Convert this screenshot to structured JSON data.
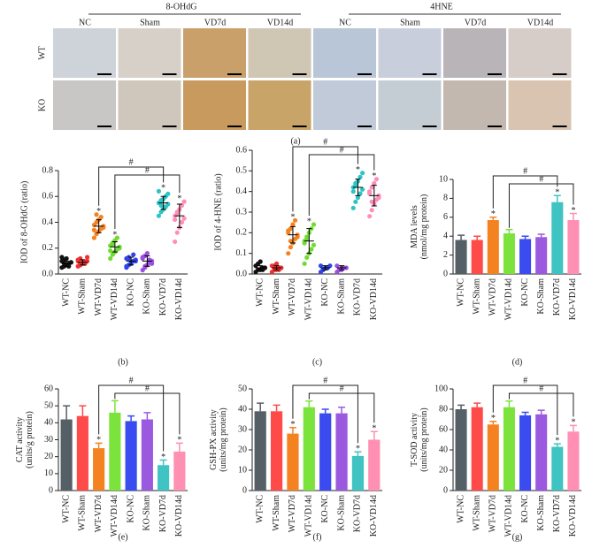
{
  "panel_a": {
    "caption": "(a)",
    "rows": [
      "WT",
      "KO"
    ],
    "stains": [
      {
        "name": "8-OHdG",
        "columns": [
          "NC",
          "Sham",
          "VD7d",
          "VD14d"
        ]
      },
      {
        "name": "4HNE",
        "columns": [
          "NC",
          "Sham",
          "VD7d",
          "VD14d"
        ]
      }
    ]
  },
  "chart_data": [
    {
      "type": "dot",
      "caption": "(b)",
      "ylabel": [
        "IOD of 8-OHdG (ratio)"
      ],
      "categories": [
        "WT-NC",
        "WT-Sham",
        "WT-VD7d",
        "WT-VD14d",
        "KO-NC",
        "KO-Sham",
        "KO-VD7d",
        "KO-VD14d"
      ],
      "colors": [
        "#111111",
        "#f03030",
        "#f58220",
        "#6fdc2f",
        "#2f45e8",
        "#9a4fe0",
        "#2ec4c4",
        "#ff8fb8"
      ],
      "ylim": [
        0,
        0.8
      ],
      "yticks": [
        {
          "value": 0,
          "label": "0.0"
        },
        0.2,
        0.4,
        0.6,
        0.8
      ],
      "groups": [
        {
          "points": [
            0.05,
            0.06,
            0.07,
            0.08,
            0.09,
            0.1,
            0.11,
            0.12,
            0.06,
            0.09,
            0.13,
            0.08
          ],
          "mean": 0.08,
          "sd": 0.02
        },
        {
          "points": [
            0.06,
            0.07,
            0.08,
            0.09,
            0.1,
            0.11,
            0.12,
            0.09,
            0.08,
            0.13,
            0.1,
            0.07
          ],
          "mean": 0.09,
          "sd": 0.02
        },
        {
          "points": [
            0.28,
            0.31,
            0.33,
            0.35,
            0.36,
            0.38,
            0.4,
            0.42,
            0.44,
            0.37,
            0.34,
            0.46
          ],
          "mean": 0.37,
          "sd": 0.05
        },
        {
          "points": [
            0.12,
            0.15,
            0.17,
            0.19,
            0.2,
            0.22,
            0.24,
            0.26,
            0.28,
            0.21,
            0.18,
            0.23
          ],
          "mean": 0.21,
          "sd": 0.04
        },
        {
          "points": [
            0.05,
            0.07,
            0.08,
            0.1,
            0.11,
            0.12,
            0.13,
            0.09,
            0.15,
            0.1,
            0.06,
            0.12
          ],
          "mean": 0.1,
          "sd": 0.03
        },
        {
          "points": [
            0.03,
            0.05,
            0.07,
            0.09,
            0.1,
            0.12,
            0.14,
            0.16,
            0.11,
            0.08,
            0.13,
            0.06
          ],
          "mean": 0.1,
          "sd": 0.04
        },
        {
          "points": [
            0.45,
            0.48,
            0.5,
            0.52,
            0.54,
            0.55,
            0.57,
            0.58,
            0.6,
            0.62,
            0.64,
            0.53
          ],
          "mean": 0.55,
          "sd": 0.05
        },
        {
          "points": [
            0.25,
            0.32,
            0.36,
            0.4,
            0.43,
            0.45,
            0.47,
            0.5,
            0.53,
            0.56,
            0.42,
            0.48
          ],
          "mean": 0.45,
          "sd": 0.09
        }
      ],
      "markers": [
        null,
        null,
        "*",
        "*",
        null,
        null,
        "*",
        "*"
      ],
      "brackets": [
        {
          "from": "WT-VD7d",
          "to": "KO-VD7d",
          "label": "#"
        },
        {
          "from": "WT-VD14d",
          "to": "KO-VD14d",
          "label": "#"
        }
      ]
    },
    {
      "type": "dot",
      "caption": "(c)",
      "ylabel": [
        "IOD of 4-HNE (ratio)"
      ],
      "categories": [
        "WT-NC",
        "WT-Sham",
        "WT-VD7d",
        "WT-VD14d",
        "KO-NC",
        "KO-Sham",
        "KO-VD7d",
        "KO-VD14d"
      ],
      "colors": [
        "#111111",
        "#f03030",
        "#f58220",
        "#6fdc2f",
        "#2f45e8",
        "#9a4fe0",
        "#2ec4c4",
        "#ff8fb8"
      ],
      "ylim": [
        0,
        0.6
      ],
      "yticks": [
        {
          "value": 0,
          "label": "0.0"
        },
        0.1,
        0.2,
        0.3,
        0.4,
        0.5,
        0.6
      ],
      "groups": [
        {
          "points": [
            0.01,
            0.02,
            0.02,
            0.03,
            0.03,
            0.04,
            0.05,
            0.06,
            0.02,
            0.03
          ],
          "mean": 0.03,
          "sd": 0.01
        },
        {
          "points": [
            0.01,
            0.02,
            0.02,
            0.03,
            0.03,
            0.04,
            0.04,
            0.05,
            0.02,
            0.03
          ],
          "mean": 0.03,
          "sd": 0.01
        },
        {
          "points": [
            0.1,
            0.13,
            0.15,
            0.17,
            0.19,
            0.2,
            0.22,
            0.24,
            0.26,
            0.18,
            0.21,
            0.16
          ],
          "mean": 0.19,
          "sd": 0.04
        },
        {
          "points": [
            0.05,
            0.08,
            0.1,
            0.12,
            0.14,
            0.16,
            0.18,
            0.2,
            0.22,
            0.24,
            0.15,
            0.17
          ],
          "mean": 0.16,
          "sd": 0.06
        },
        {
          "points": [
            0.01,
            0.02,
            0.03,
            0.03,
            0.04,
            0.04,
            0.02,
            0.03
          ],
          "mean": 0.03,
          "sd": 0.01
        },
        {
          "points": [
            0.01,
            0.02,
            0.02,
            0.03,
            0.03,
            0.04,
            0.02,
            0.03
          ],
          "mean": 0.03,
          "sd": 0.01
        },
        {
          "points": [
            0.32,
            0.35,
            0.37,
            0.39,
            0.41,
            0.42,
            0.43,
            0.45,
            0.47,
            0.49,
            0.4,
            0.44
          ],
          "mean": 0.42,
          "sd": 0.04
        },
        {
          "points": [
            0.28,
            0.31,
            0.34,
            0.36,
            0.38,
            0.4,
            0.42,
            0.44,
            0.46,
            0.37,
            0.39,
            0.35
          ],
          "mean": 0.38,
          "sd": 0.05
        }
      ],
      "markers": [
        null,
        null,
        "*",
        "*",
        null,
        null,
        "*",
        "*"
      ],
      "brackets": [
        {
          "from": "WT-VD7d",
          "to": "KO-VD7d",
          "label": "#"
        },
        {
          "from": "WT-VD14d",
          "to": "KO-VD14d",
          "label": "#"
        }
      ]
    },
    {
      "type": "bar",
      "caption": "(d)",
      "ylabel": [
        "MDA levels",
        "(nmol/mg protein)"
      ],
      "categories": [
        "WT-NC",
        "WT-Sham",
        "WT-VD7d",
        "WT-VD14d",
        "KO-NC",
        "KO-Sham",
        "KO-VD7d",
        "KO-VD14d"
      ],
      "colors": [
        "#555f66",
        "#ff4a4a",
        "#f58220",
        "#7be33b",
        "#3a4cf0",
        "#9b59e0",
        "#3fc3c3",
        "#ff8fb3"
      ],
      "ylim": [
        0,
        10
      ],
      "yticks": [
        0,
        2,
        4,
        6,
        8,
        10
      ],
      "values": [
        3.6,
        3.6,
        5.7,
        4.3,
        3.7,
        3.9,
        7.6,
        5.7
      ],
      "errors": [
        0.5,
        0.4,
        0.3,
        0.4,
        0.3,
        0.3,
        0.7,
        0.7
      ],
      "markers": [
        null,
        null,
        "*",
        null,
        null,
        null,
        "*",
        "*"
      ],
      "brackets": [
        {
          "from": "WT-VD7d",
          "to": "KO-VD7d",
          "label": "#"
        },
        {
          "from": "WT-VD14d",
          "to": "KO-VD14d",
          "label": "#"
        }
      ]
    },
    {
      "type": "bar",
      "caption": "(e)",
      "ylabel": [
        "CAT activity",
        "(units/g protein)"
      ],
      "categories": [
        "WT-NC",
        "WT-Sham",
        "WT-VD7d",
        "WT-VD14d",
        "KO-NC",
        "KO-Sham",
        "KO-VD7d",
        "KO-VD14d"
      ],
      "colors": [
        "#555f66",
        "#ff4a4a",
        "#f58220",
        "#7be33b",
        "#3a4cf0",
        "#9b59e0",
        "#3fc3c3",
        "#ff8fb3"
      ],
      "ylim": [
        0,
        60
      ],
      "yticks": [
        0,
        10,
        20,
        30,
        40,
        50,
        60
      ],
      "values": [
        42,
        44,
        25,
        46,
        41,
        42,
        15,
        23
      ],
      "errors": [
        8,
        6,
        3,
        7,
        3,
        4,
        3,
        5
      ],
      "markers": [
        null,
        null,
        "*",
        null,
        null,
        null,
        "*",
        "*"
      ],
      "brackets": [
        {
          "from": "WT-VD7d",
          "to": "KO-VD7d",
          "label": "#"
        },
        {
          "from": "WT-VD14d",
          "to": "KO-VD14d",
          "label": "#"
        }
      ]
    },
    {
      "type": "bar",
      "caption": "(f)",
      "ylabel": [
        "GSH-PX activity",
        "(units/mg protein)"
      ],
      "categories": [
        "WT-NC",
        "WT-Sham",
        "WT-VD7d",
        "WT-VD14d",
        "KO-NC",
        "KO-Sham",
        "KO-VD7d",
        "KO-VD14d"
      ],
      "colors": [
        "#555f66",
        "#ff4a4a",
        "#f58220",
        "#7be33b",
        "#3a4cf0",
        "#9b59e0",
        "#3fc3c3",
        "#ff8fb3"
      ],
      "ylim": [
        0,
        50
      ],
      "yticks": [
        0,
        10,
        20,
        30,
        40,
        50
      ],
      "values": [
        39,
        39,
        28,
        41,
        38,
        38,
        17,
        25
      ],
      "errors": [
        4,
        3,
        3,
        3,
        2,
        3,
        2,
        4
      ],
      "markers": [
        null,
        null,
        "*",
        null,
        null,
        null,
        "*",
        "*"
      ],
      "brackets": [
        {
          "from": "WT-VD7d",
          "to": "KO-VD7d",
          "label": "#"
        },
        {
          "from": "WT-VD14d",
          "to": "KO-VD14d",
          "label": "#"
        }
      ]
    },
    {
      "type": "bar",
      "caption": "(g)",
      "ylabel": [
        "T-SOD activity",
        "(units/mg protein)"
      ],
      "categories": [
        "WT-NC",
        "WT-Sham",
        "WT-VD7d",
        "WT-VD14d",
        "KO-NC",
        "KO-Sham",
        "KO-VD7d",
        "KO-VD14d"
      ],
      "colors": [
        "#555f66",
        "#ff4a4a",
        "#f58220",
        "#7be33b",
        "#3a4cf0",
        "#9b59e0",
        "#3fc3c3",
        "#ff8fb3"
      ],
      "ylim": [
        0,
        100
      ],
      "yticks": [
        0,
        20,
        40,
        60,
        80,
        100
      ],
      "values": [
        80,
        82,
        65,
        82,
        74,
        75,
        43,
        58
      ],
      "errors": [
        4,
        4,
        3,
        6,
        3,
        4,
        3,
        6
      ],
      "markers": [
        null,
        null,
        "*",
        null,
        null,
        null,
        "*",
        "*"
      ],
      "brackets": [
        {
          "from": "WT-VD7d",
          "to": "KO-VD7d",
          "label": "#"
        },
        {
          "from": "WT-VD14d",
          "to": "KO-VD14d",
          "label": "#"
        }
      ]
    }
  ]
}
